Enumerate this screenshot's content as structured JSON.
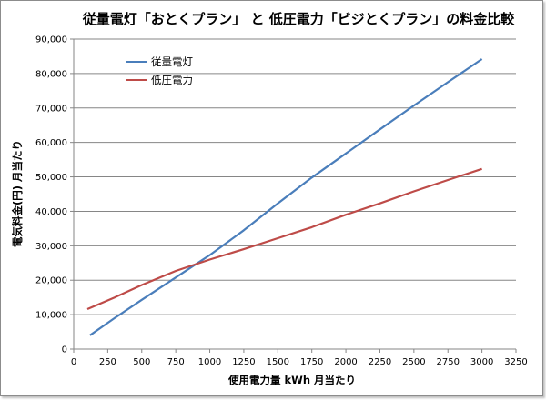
{
  "chart_data": {
    "type": "line",
    "title": "従量電灯「おとくプラン」 と 低圧電力「ビジとくプラン」の料金比較",
    "xlabel": "使用電力量 kWh 月当たり",
    "ylabel": "電気料金(円) 月当たり",
    "xlim": [
      0,
      3250
    ],
    "ylim": [
      0,
      90000
    ],
    "x_ticks": [
      "0",
      "250",
      "500",
      "750",
      "1000",
      "1250",
      "1500",
      "1750",
      "2000",
      "2250",
      "2500",
      "2750",
      "3000",
      "3250"
    ],
    "y_ticks": [
      "0",
      "10,000",
      "20,000",
      "30,000",
      "40,000",
      "50,000",
      "60,000",
      "70,000",
      "80,000",
      "90,000"
    ],
    "grid": "horizontal",
    "legend_position": "top-left",
    "series": [
      {
        "name": "従量電灯",
        "color": "#4a7ebb",
        "points": [
          [
            120,
            4000
          ],
          [
            300,
            9000
          ],
          [
            500,
            14300
          ],
          [
            750,
            20800
          ],
          [
            1000,
            27300
          ],
          [
            1250,
            34500
          ],
          [
            1500,
            42300
          ],
          [
            1750,
            49800
          ],
          [
            2000,
            56800
          ],
          [
            2250,
            63800
          ],
          [
            2500,
            70700
          ],
          [
            2750,
            77500
          ],
          [
            3000,
            84200
          ]
        ]
      },
      {
        "name": "低圧電力",
        "color": "#be4b48",
        "points": [
          [
            100,
            11600
          ],
          [
            300,
            15000
          ],
          [
            500,
            18600
          ],
          [
            750,
            22700
          ],
          [
            1000,
            26000
          ],
          [
            1250,
            29000
          ],
          [
            1500,
            32200
          ],
          [
            1750,
            35400
          ],
          [
            2000,
            39000
          ],
          [
            2250,
            42300
          ],
          [
            2500,
            45800
          ],
          [
            2750,
            49100
          ],
          [
            3000,
            52300
          ]
        ]
      }
    ]
  }
}
